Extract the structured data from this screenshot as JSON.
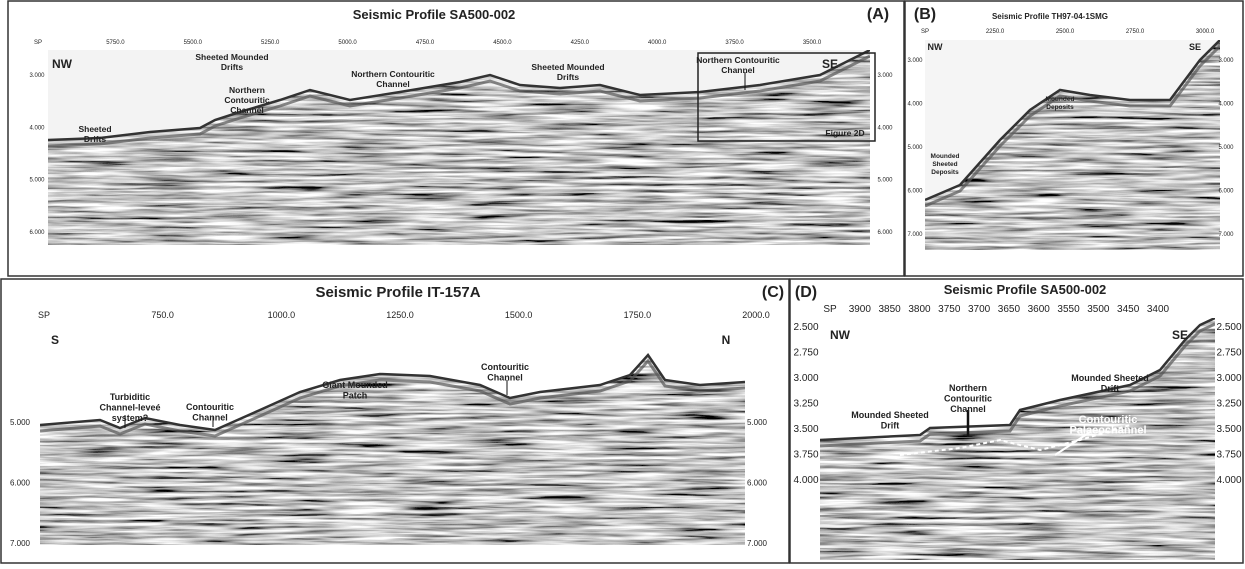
{
  "panels": [
    {
      "label": "(A)",
      "title": "Seismic Profile SA500-002",
      "directions": [
        "NW",
        "SE"
      ],
      "sp_ticks": [
        "SP",
        "5750.0",
        "5500.0",
        "5250.0",
        "5000.0",
        "4750.0",
        "4500.0",
        "4250.0",
        "4000.0",
        "3750.0",
        "3500.0"
      ],
      "depth_ticks": [
        "3.000",
        "4.000",
        "5.000",
        "6.000"
      ],
      "annotations": [
        {
          "lines": [
            "Sheeted",
            "Drifts"
          ]
        },
        {
          "lines": [
            "Sheeted Mounded",
            "Drifts"
          ]
        },
        {
          "lines": [
            "Northern",
            "Contouritic",
            "Channel"
          ]
        },
        {
          "lines": [
            "Northern Contouritic",
            "Channel"
          ]
        },
        {
          "lines": [
            "Sheeted Mounded",
            "Drifts"
          ]
        },
        {
          "lines": [
            "Northern Contouritic",
            "Channel"
          ]
        },
        {
          "lines": [
            "Figure 2D"
          ]
        }
      ]
    },
    {
      "label": "(B)",
      "title": "Seismic Profile TH97-04-1SMG",
      "directions": [
        "NW",
        "SE"
      ],
      "sp_ticks": [
        "SP",
        "2250.0",
        "2500.0",
        "2750.0",
        "3000.0"
      ],
      "depth_ticks": [
        "3.000",
        "4.000",
        "5.000",
        "6.000",
        "7.000"
      ],
      "annotations": [
        {
          "lines": [
            "Mounded",
            "Deposits"
          ]
        },
        {
          "lines": [
            "Mounded",
            "Sheeted",
            "Deposits"
          ]
        }
      ]
    },
    {
      "label": "(C)",
      "title": "Seismic Profile IT-157A",
      "directions": [
        "S",
        "N"
      ],
      "sp_ticks": [
        "SP",
        "750.0",
        "1000.0",
        "1250.0",
        "1500.0",
        "1750.0",
        "2000.0"
      ],
      "depth_ticks": [
        "5.000",
        "6.000",
        "7.000"
      ],
      "annotations": [
        {
          "lines": [
            "Turbiditic",
            "Channel-leveé",
            "system?"
          ]
        },
        {
          "lines": [
            "Contouritic",
            "Channel"
          ]
        },
        {
          "lines": [
            "Giant Mounded",
            "Patch"
          ]
        },
        {
          "lines": [
            "Contouritic",
            "Channel"
          ]
        }
      ]
    },
    {
      "label": "(D)",
      "title": "Seismic Profile SA500-002",
      "directions": [
        "NW",
        "SE"
      ],
      "sp_ticks": [
        "SP",
        "3900",
        "3850",
        "3800",
        "3750",
        "3700",
        "3650",
        "3600",
        "3550",
        "3500",
        "3450",
        "3400"
      ],
      "depth_ticks": [
        "2.500",
        "2.750",
        "3.000",
        "3.250",
        "3.500",
        "3.750",
        "4.000"
      ],
      "annotations": [
        {
          "lines": [
            "Mounded Sheeted",
            "Drift"
          ]
        },
        {
          "lines": [
            "Northern",
            "Contouritic",
            "Channel"
          ]
        },
        {
          "lines": [
            "Mounded Sheeted",
            "Drift"
          ]
        },
        {
          "lines": [
            "Contouritic",
            "Palaeochannel"
          ]
        }
      ]
    }
  ]
}
